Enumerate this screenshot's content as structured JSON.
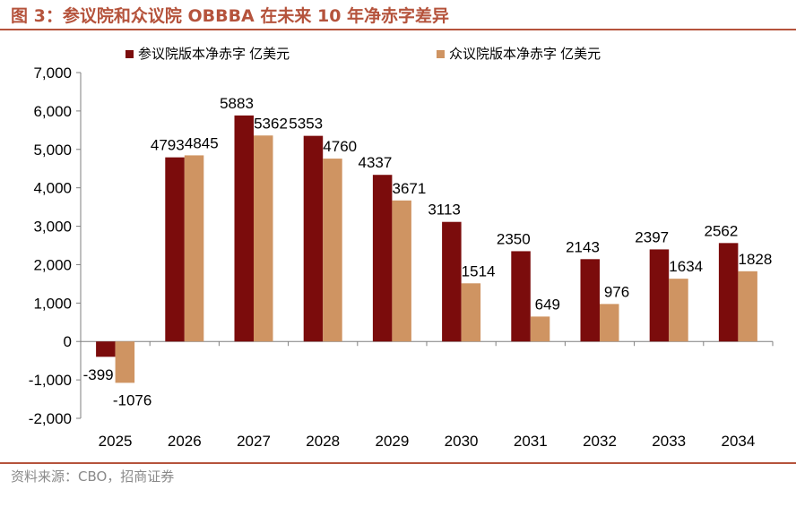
{
  "figure": {
    "title": "图 3：参议院和众议院 OBBBA 在未来 10 年净赤字差异",
    "source": "资料来源：CBO，招商证券"
  },
  "colors": {
    "series1": "#7b0c0c",
    "series2": "#cf9462",
    "accent": "#b5533c",
    "axis": "#7f7f7f"
  },
  "chart_data": {
    "type": "bar",
    "categories": [
      "2025",
      "2026",
      "2027",
      "2028",
      "2029",
      "2030",
      "2031",
      "2032",
      "2033",
      "2034"
    ],
    "series": [
      {
        "name": "参议院版本净赤字 亿美元",
        "values": [
          -399,
          4793,
          5883,
          5353,
          4337,
          3113,
          2350,
          2143,
          2397,
          2562
        ]
      },
      {
        "name": "众议院版本净赤字 亿美元",
        "values": [
          -1076,
          4845,
          5362,
          4760,
          3671,
          1514,
          649,
          976,
          1634,
          1828
        ]
      }
    ],
    "yticks": [
      "-2,000",
      "-1,000",
      "0",
      "1,000",
      "2,000",
      "3,000",
      "4,000",
      "5,000",
      "6,000",
      "7,000"
    ],
    "ylim": [
      -2000,
      7000
    ],
    "grid": false,
    "legend_position": "top"
  }
}
